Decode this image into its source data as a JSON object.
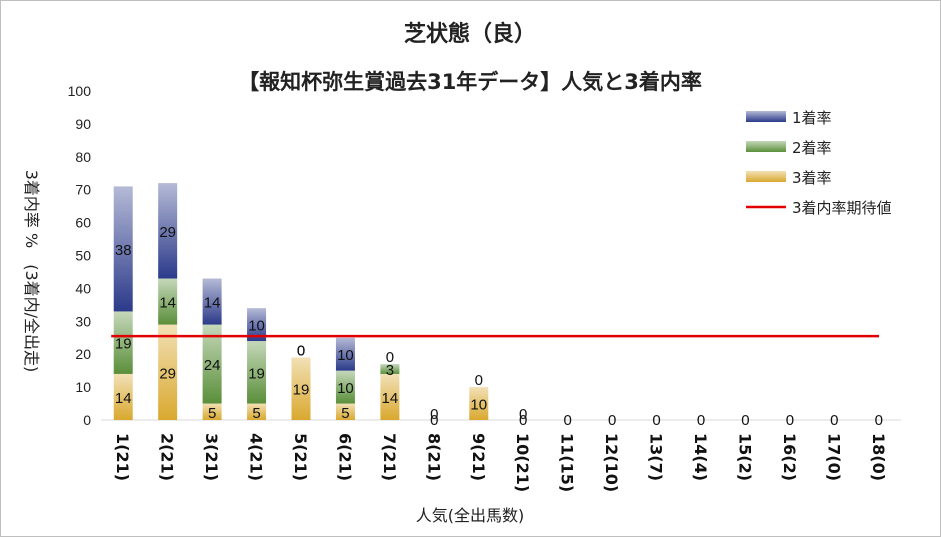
{
  "chart_data": {
    "type": "bar",
    "stacked": true,
    "title": "芝状態（良）",
    "subtitle": "【報知杯弥生賞過去31年データ】人気と3着内率",
    "xlabel": "人気(全出馬数)",
    "ylabel": "3着内率 %　(3着内/全出走)",
    "ylim": [
      0,
      100
    ],
    "yticks": [
      0,
      10,
      20,
      30,
      40,
      50,
      60,
      70,
      80,
      90,
      100
    ],
    "categories": [
      "1(21)",
      "2(21)",
      "3(21)",
      "4(21)",
      "5(21)",
      "6(21)",
      "7(21)",
      "8(21)",
      "9(21)",
      "10(21)",
      "11(15)",
      "12(10)",
      "13(7)",
      "14(4)",
      "15(2)",
      "16(2)",
      "17(0)",
      "18(0)"
    ],
    "series": [
      {
        "name": "3着率",
        "color": "#d9a82e",
        "values": [
          14,
          29,
          5,
          5,
          19,
          5,
          14,
          0,
          10,
          0,
          0,
          0,
          0,
          0,
          0,
          0,
          0,
          0
        ],
        "labels": [
          "14",
          "29",
          "5",
          "5",
          "19",
          "5",
          "14",
          "0",
          "10",
          "0",
          "",
          "",
          "",
          "",
          "",
          "",
          "",
          ""
        ]
      },
      {
        "name": "2着率",
        "color": "#5a8f3a",
        "values": [
          19,
          14,
          24,
          19,
          0,
          10,
          3,
          0,
          0,
          0,
          0,
          0,
          0,
          0,
          0,
          0,
          0,
          0
        ],
        "labels": [
          "19",
          "14",
          "24",
          "19",
          "0",
          "10",
          "3",
          "0",
          "0",
          "0",
          "",
          "",
          "",
          "",
          "",
          "",
          "",
          ""
        ]
      },
      {
        "name": "1着率",
        "color": "#2b3a8a",
        "values": [
          38,
          29,
          14,
          10,
          0,
          10,
          0,
          0,
          0,
          0,
          0,
          0,
          0,
          0,
          0,
          0,
          0,
          0
        ],
        "labels": [
          "38",
          "29",
          "14",
          "10",
          "0",
          "10",
          "0",
          "",
          "",
          "",
          "0",
          "0",
          "0",
          "0",
          "0",
          "0",
          "0",
          "0"
        ]
      }
    ],
    "reference_line": {
      "name": "3着内率期待値",
      "color": "#e00000",
      "value": 25.5
    },
    "legend": {
      "position": "top-right",
      "order": [
        "1着率",
        "2着率",
        "3着率",
        "3着内率期待値"
      ]
    }
  }
}
